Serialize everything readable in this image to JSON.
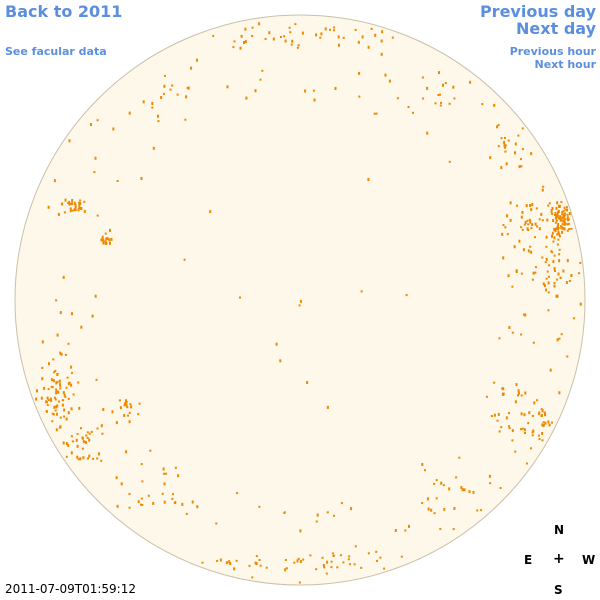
{
  "nav": {
    "back_to_year": "Back to 2011",
    "see_facular": "See facular data",
    "previous_day": "Previous day",
    "next_day": "Next day",
    "previous_hour": "Previous hour",
    "next_hour": "Next hour"
  },
  "timestamp": "2011-07-09T01:59:12",
  "compass": {
    "north": "N",
    "east": "E",
    "west": "W",
    "south": "S",
    "center": "+"
  },
  "colors": {
    "link": "#5b8fde",
    "disk_fill": "#fdf8ea",
    "disk_edge": "#c9c0a8",
    "facula": "#ee8800"
  }
}
